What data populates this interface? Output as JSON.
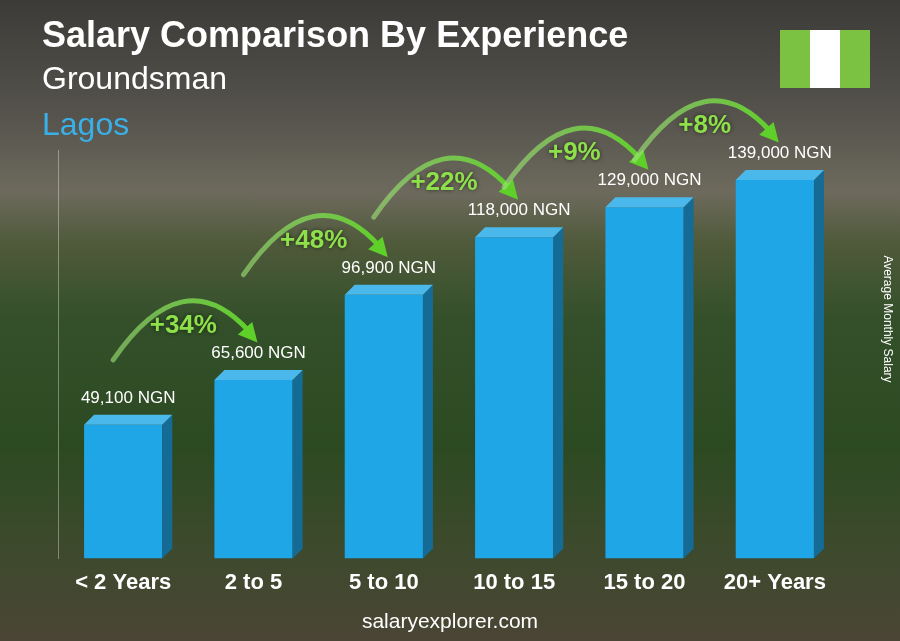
{
  "chart_data": {
    "type": "bar",
    "title": "Salary Comparison By Experience",
    "subtitles": [
      "Groundsman",
      "Lagos"
    ],
    "y_label": "Average Monthly Salary",
    "source": "salaryexplorer.com",
    "categories": [
      "< 2 Years",
      "2 to 5",
      "5 to 10",
      "10 to 15",
      "15 to 20",
      "20+ Years"
    ],
    "values": [
      49100,
      65600,
      96900,
      118000,
      129000,
      139000
    ],
    "value_labels": [
      "49,100 NGN",
      "65,600 NGN",
      "96,900 NGN",
      "118,000 NGN",
      "129,000 NGN",
      "139,000 NGN"
    ],
    "annotations": [
      "+34%",
      "+48%",
      "+22%",
      "+9%",
      "+8%"
    ],
    "color": "#1ea6e6",
    "ylim": [
      0,
      150000
    ],
    "grid": false,
    "data_labels": true,
    "tick_labels": "x"
  }
}
